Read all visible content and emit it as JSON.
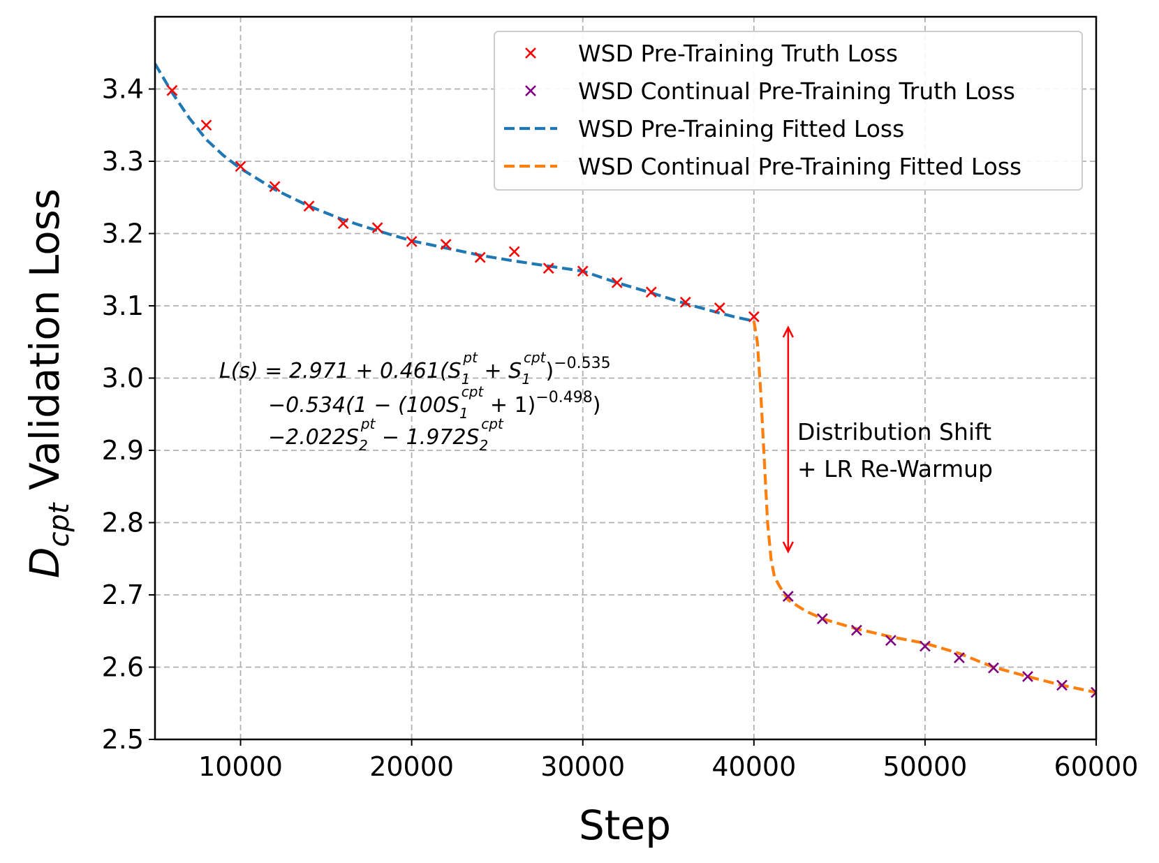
{
  "chart_data": {
    "type": "line",
    "xlabel": "Step",
    "ylabel_main": "D",
    "ylabel_sub": "cpt",
    "ylabel_rest": " Validation Loss",
    "xlim": [
      5000,
      60000
    ],
    "ylim": [
      2.5,
      3.5
    ],
    "x_ticks": [
      10000,
      20000,
      30000,
      40000,
      50000,
      60000
    ],
    "x_tick_labels": [
      "10000",
      "20000",
      "30000",
      "40000",
      "50000",
      "60000"
    ],
    "y_ticks": [
      2.5,
      2.6,
      2.7,
      2.8,
      2.9,
      3.0,
      3.1,
      3.2,
      3.3,
      3.4
    ],
    "y_tick_labels": [
      "2.5",
      "2.6",
      "2.7",
      "2.8",
      "2.9",
      "3.0",
      "3.1",
      "3.2",
      "3.3",
      "3.4"
    ],
    "grid": true,
    "legend_position": "top-right",
    "series": [
      {
        "name": "WSD Pre-Training Truth Loss",
        "kind": "scatter",
        "marker": "x",
        "color": "#ff0000",
        "x": [
          6000,
          8000,
          10000,
          12000,
          14000,
          16000,
          18000,
          20000,
          22000,
          24000,
          26000,
          28000,
          30000,
          32000,
          34000,
          36000,
          38000,
          40000
        ],
        "y": [
          3.398,
          3.35,
          3.293,
          3.265,
          3.238,
          3.214,
          3.208,
          3.189,
          3.185,
          3.167,
          3.175,
          3.152,
          3.148,
          3.132,
          3.119,
          3.105,
          3.097,
          3.085
        ]
      },
      {
        "name": "WSD Continual Pre-Training Truth Loss",
        "kind": "scatter",
        "marker": "x",
        "color": "#800080",
        "x": [
          42000,
          44000,
          46000,
          48000,
          50000,
          52000,
          54000,
          56000,
          58000,
          60000
        ],
        "y": [
          2.698,
          2.667,
          2.651,
          2.637,
          2.629,
          2.613,
          2.599,
          2.587,
          2.575,
          2.565
        ]
      },
      {
        "name": "WSD Pre-Training Fitted Loss",
        "kind": "line",
        "dash": true,
        "color": "#1f77b4",
        "x": [
          5000,
          6000,
          7000,
          8000,
          9000,
          10000,
          12000,
          14000,
          16000,
          18000,
          20000,
          22000,
          24000,
          26000,
          28000,
          30000,
          32000,
          34000,
          36000,
          38000,
          39000,
          40000
        ],
        "y": [
          3.435,
          3.395,
          3.36,
          3.33,
          3.308,
          3.29,
          3.261,
          3.238,
          3.219,
          3.204,
          3.19,
          3.18,
          3.17,
          3.162,
          3.155,
          3.148,
          3.132,
          3.118,
          3.103,
          3.09,
          3.084,
          3.079
        ]
      },
      {
        "name": "WSD Continual Pre-Training Fitted Loss",
        "kind": "line",
        "dash": true,
        "color": "#ff7f0e",
        "x": [
          40000,
          40200,
          40400,
          40600,
          40800,
          41000,
          41200,
          41500,
          42000,
          43000,
          44000,
          46000,
          48000,
          50000,
          52000,
          54000,
          56000,
          58000,
          60000
        ],
        "y": [
          3.079,
          3.05,
          2.98,
          2.89,
          2.8,
          2.75,
          2.725,
          2.712,
          2.693,
          2.678,
          2.667,
          2.653,
          2.642,
          2.633,
          2.619,
          2.6,
          2.587,
          2.575,
          2.565
        ]
      }
    ],
    "annotations": {
      "arrow": {
        "x": 42000,
        "y_start": 2.76,
        "y_end": 3.07,
        "color": "#ff0000"
      },
      "shift_label_line1": "Distribution Shift",
      "shift_label_line2": "+ LR Re-Warmup",
      "equation": {
        "line1": {
          "lhs": "L(s) = 2.971 + 0.461(S",
          "sub1": "1",
          "sup1": "pt",
          "mid": " + S",
          "sub2": "1",
          "sup2": "cpt",
          "close": ")",
          "exp": "−0.535"
        },
        "line2": {
          "a": "−0.534(1 − (100S",
          "sub": "1",
          "sup": "cpt",
          "b": " + 1)",
          "exp": "−0.498",
          "c": ")"
        },
        "line3": {
          "a": "−2.022S",
          "sub1": "2",
          "sup1": "pt",
          "b": " − 1.972S",
          "sub2": "2",
          "sup2": "cpt"
        }
      }
    }
  }
}
